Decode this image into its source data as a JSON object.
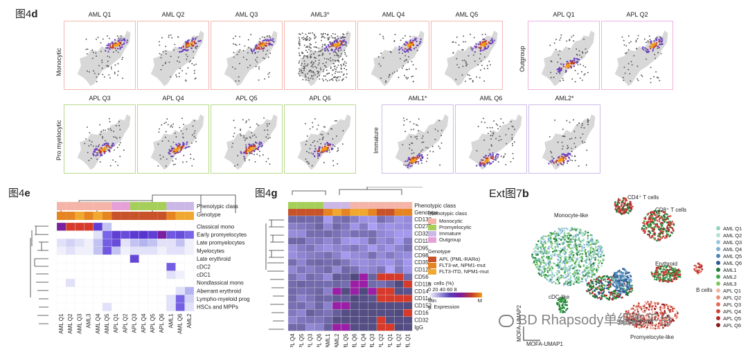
{
  "d": {
    "label_prefix": "图4",
    "label_letter": "d",
    "row_labels": [
      "Monocytic",
      "Outgroup",
      "Pro myelocytic",
      "Immature"
    ],
    "row1_titles": [
      "AML Q1",
      "AML Q2",
      "AML Q3",
      "AML3*",
      "AML Q4",
      "AML Q5"
    ],
    "outgroup_titles": [
      "APL Q1",
      "APL Q2"
    ],
    "row2_titles": [
      "APL Q3",
      "APL Q4",
      "APL Q5",
      "APL Q6"
    ],
    "immature_titles": [
      "AML1*",
      "AML Q6",
      "AML2*"
    ]
  },
  "e": {
    "label_prefix": "图4",
    "label_letter": "e",
    "annot_labels": [
      "Phenotypic class",
      "Genotype"
    ],
    "rows": [
      "Classical mono",
      "Early promyelocytes",
      "Late promyelocytes",
      "Myelocytes",
      "Late erythroid",
      "cDC2",
      "cDC1",
      "Nondlassical mono",
      "Aberrant erythroid",
      "Lympho-myeloid prog",
      "HSCs and MPPs"
    ],
    "cols": [
      "AML Q1",
      "AML Q2",
      "AML Q3",
      "AML3",
      "AML Q4",
      "AML Q5",
      "APL Q1",
      "APL Q2",
      "APL Q3",
      "APL Q4",
      "APL Q5",
      "APL Q6",
      "AML1",
      "AML Q6",
      "AML2"
    ]
  },
  "g": {
    "label_prefix": "图4",
    "label_letter": "g",
    "annot_labels": [
      "Phenotypic class",
      "Genotype"
    ],
    "rows": [
      "CD133",
      "CD275",
      "CD326",
      "CD117",
      "CD95",
      "CD98",
      "CD357",
      "CD126",
      "CD56",
      "CD11b",
      "CD14",
      "CD11a",
      "CD152",
      "CD16",
      "CD32",
      "IgG"
    ],
    "cols": [
      "APL Q4",
      "APL Q5",
      "APL Q3",
      "APL Q6",
      "AML1",
      "AML2",
      "AML Q5",
      "AML Q6",
      "AML Q4",
      "AML Q3",
      "APL Q2",
      "APL Q1",
      "AML Q2",
      "AML Q1"
    ],
    "legend": {
      "phenotypic_title": "Phenotypic class",
      "phenotypic_items": [
        {
          "label": "Monocytic",
          "color": "#f4b5a8"
        },
        {
          "label": "Promyelocytic",
          "color": "#a5cf5a"
        },
        {
          "label": "Immature",
          "color": "#cbb8e6"
        },
        {
          "label": "Outgroup",
          "color": "#e6a0d8"
        }
      ],
      "genotype_title": "Genotype",
      "genotype_items": [
        {
          "label": "APL (PML-RARα)",
          "color": "#c8532a"
        },
        {
          "label": "FLT3-wt, NPM1-mut",
          "color": "#e58420"
        },
        {
          "label": "FLT3-ITD, NPM1-mut",
          "color": "#f0a830"
        }
      ],
      "scale_e_label": "e: cells (%)",
      "scale_e_ticks": "0 20 40 60 8",
      "scale_g_min": "Min",
      "scale_g_max": "M",
      "scale_g_label": "g: Expression"
    }
  },
  "ext": {
    "label_prefix": "Ext图7",
    "label_letter": "b",
    "cluster_labels": {
      "cd4": "CD4⁺ T cells",
      "cd8": "CD8⁺ T cells",
      "monocyte": "Monocyte-like",
      "erythroid": "Erythroid",
      "bcells": "B cells",
      "cdc": "cDC-like",
      "stemmpp": "Stem/MPP-like",
      "promyelocyte": "Promyelocyte-like"
    },
    "axis_x": "MOFA-UMAP1",
    "axis_y": "MOFA-UMAP2",
    "legend": [
      {
        "label": "AML Q1",
        "color": "#8fd4b8"
      },
      {
        "label": "AML Q2",
        "color": "#b3e0cf"
      },
      {
        "label": "AML Q3",
        "color": "#9cc7dd"
      },
      {
        "label": "AML Q4",
        "color": "#7fb0d0"
      },
      {
        "label": "AML Q5",
        "color": "#4f86b8"
      },
      {
        "label": "AML Q6",
        "color": "#2a5a95"
      },
      {
        "label": "AML1",
        "color": "#1d7a3a"
      },
      {
        "label": "AML2",
        "color": "#43a84b"
      },
      {
        "label": "AML3",
        "color": "#7cc75c"
      },
      {
        "label": "APL Q1",
        "color": "#f2b39f"
      },
      {
        "label": "APL Q2",
        "color": "#eb8f79"
      },
      {
        "label": "APL Q3",
        "color": "#e06b5a"
      },
      {
        "label": "APL Q4",
        "color": "#cf4638"
      },
      {
        "label": "APL Q5",
        "color": "#b42b2b"
      },
      {
        "label": "APL Q6",
        "color": "#8c1a1a"
      }
    ],
    "watermark": "BD Rhapsody单细胞平台"
  },
  "colors": {
    "monocytic_border": "#f2b8b0",
    "promyelocytic_border": "#b8d98a",
    "immature_border": "#cdbbe8",
    "outgroup_border": "#efb3e2"
  }
}
